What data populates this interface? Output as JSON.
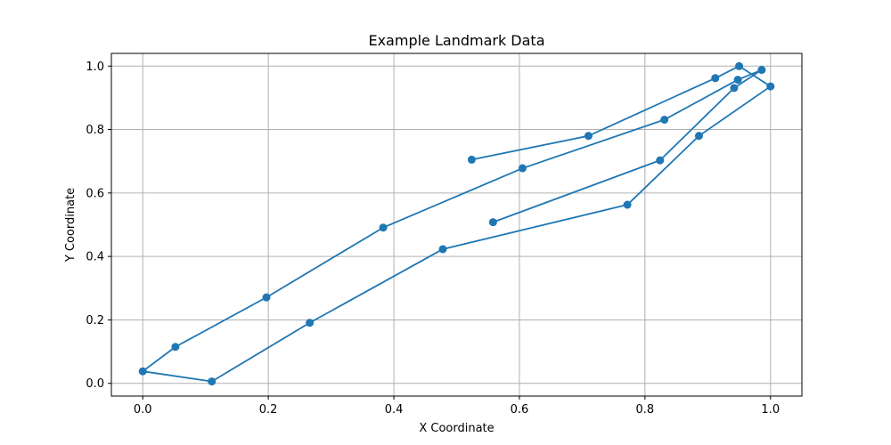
{
  "chart_data": {
    "type": "line",
    "title": "Example Landmark Data",
    "xlabel": "X Coordinate",
    "ylabel": "Y Coordinate",
    "xlim": [
      -0.05,
      1.05
    ],
    "ylim": [
      -0.04,
      1.04
    ],
    "xticks": [
      0.0,
      0.2,
      0.4,
      0.6,
      0.8,
      1.0
    ],
    "xtick_labels": [
      "0.0",
      "0.2",
      "0.4",
      "0.6",
      "0.8",
      "1.0"
    ],
    "yticks": [
      0.0,
      0.2,
      0.4,
      0.6,
      0.8,
      1.0
    ],
    "ytick_labels": [
      "0.0",
      "0.2",
      "0.4",
      "0.6",
      "0.8",
      "1.0"
    ],
    "grid": true,
    "color": "#1f77b4",
    "marker": "circle",
    "x": [
      0.524,
      0.71,
      0.912,
      0.95,
      1.0,
      0.886,
      0.772,
      0.478,
      0.266,
      0.11,
      0.0,
      0.052,
      0.197,
      0.383,
      0.605,
      0.831,
      0.948,
      0.986,
      0.942,
      0.824,
      0.558
    ],
    "y": [
      0.705,
      0.78,
      0.962,
      1.0,
      0.936,
      0.78,
      0.563,
      0.423,
      0.191,
      0.006,
      0.038,
      0.115,
      0.271,
      0.491,
      0.678,
      0.831,
      0.957,
      0.988,
      0.931,
      0.703,
      0.508
    ]
  }
}
